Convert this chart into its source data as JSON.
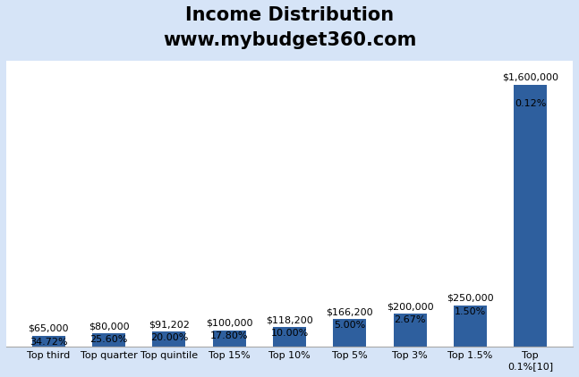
{
  "title_line1": "Income Distribution",
  "title_line2": "www.mybudget360.com",
  "categories": [
    "Top third",
    "Top quarter",
    "Top quintile",
    "Top 15%",
    "Top 10%",
    "Top 5%",
    "Top 3%",
    "Top 1.5%",
    "Top\n0.1%[10]"
  ],
  "dollar_values": [
    65000,
    80000,
    91202,
    100000,
    118200,
    166200,
    200000,
    250000,
    1600000
  ],
  "dollar_labels": [
    "$65,000",
    "$80,000",
    "$91,202",
    "$100,000",
    "$118,200",
    "$166,200",
    "$200,000",
    "$250,000",
    "$1,600,000"
  ],
  "pct_labels": [
    "34.72%",
    "25.60%",
    "20.00%",
    "17.80%",
    "10.00%",
    "5.00%",
    "2.67%",
    "1.50%",
    "0.12%"
  ],
  "bar_color": "#2E5F9E",
  "background_color": "#D6E4F7",
  "plot_bg_color": "#FFFFFF",
  "title_fontsize": 15,
  "label_fontsize": 8,
  "tick_fontsize": 8,
  "ylim_max": 1750000
}
